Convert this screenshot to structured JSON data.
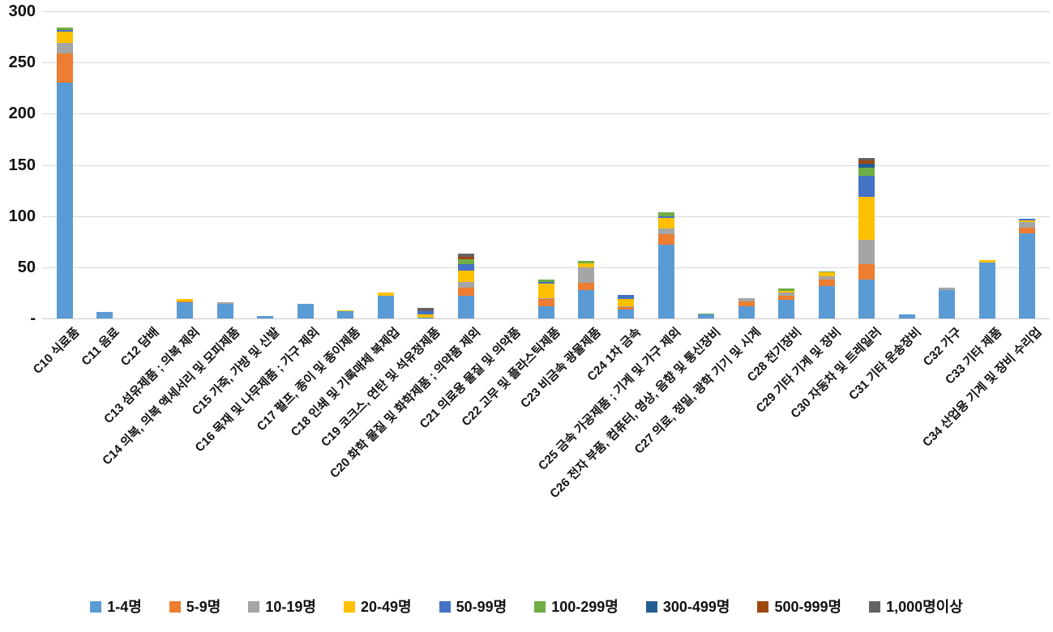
{
  "chart_data": {
    "type": "bar",
    "stacked": true,
    "title": "",
    "grid": true,
    "legend_position": "bottom",
    "y_axis": {
      "min": 0,
      "max": 300,
      "tick_interval": 50,
      "tick_values": [
        0,
        50,
        100,
        150,
        200,
        250,
        300
      ],
      "tick_labels": [
        "-",
        "50",
        "100",
        "150",
        "200",
        "250",
        "300"
      ]
    },
    "categories": [
      "C10 식료품",
      "C11 음료",
      "C12 담배",
      "C13 섬유제품 ; 의복 제외",
      "C14 의복, 의복 액세서리 및 모피제품",
      "C15 가죽, 가방 및 신발",
      "C16 목재 및 나무제품 ; 가구 제외",
      "C17 펄프, 종이 및 종이제품",
      "C18 인쇄 및 기록매체 복제업",
      "C19 코크스, 연탄 및 석유정제품",
      "C20 화학 물질 및 화학제품 ; 의약품 제외",
      "C21 의료용 물질 및 의약품",
      "C22 고무 및 플라스틱제품",
      "C23 비금속 광물제품",
      "C24 1차 금속",
      "C25 금속 가공제품 ; 기계 및 가구 제외",
      "C26 전자 부품, 컴퓨터, 영상, 음향 및 통신장비",
      "C27 의료, 정밀, 광학 기기 및 시계",
      "C28 전기장비",
      "C29 기타 기계 및 장비",
      "C30 자동차 및 트레일러",
      "C31 기타 운송장비",
      "C32 가구",
      "C33 기타 제품",
      "C34 산업용 기계 및 장비 수리업"
    ],
    "series": [
      {
        "name": "1-4명",
        "color": "#5B9BD5",
        "values": [
          230,
          6,
          0,
          16,
          14,
          2,
          14,
          7,
          22,
          1,
          22,
          0,
          12,
          28,
          9,
          72,
          4,
          12,
          18,
          32,
          38,
          4,
          28,
          55,
          83
        ]
      },
      {
        "name": "5-9명",
        "color": "#ED7D31",
        "values": [
          29,
          0,
          0,
          1,
          0,
          0,
          0,
          0,
          0,
          0,
          8,
          0,
          7,
          7,
          2,
          10,
          0,
          5,
          4,
          6,
          15,
          0,
          0,
          0,
          6
        ]
      },
      {
        "name": "10-19명",
        "color": "#A5A5A5",
        "values": [
          10,
          0,
          0,
          0,
          2,
          0,
          0,
          0,
          0,
          0,
          6,
          0,
          1,
          15,
          1,
          6,
          0,
          3,
          3,
          3,
          24,
          0,
          2,
          0,
          5
        ]
      },
      {
        "name": "20-49명",
        "color": "#FFC000",
        "values": [
          11,
          0,
          0,
          2,
          0,
          0,
          0,
          1,
          3,
          3,
          11,
          0,
          14,
          4,
          7,
          10,
          0,
          0,
          2,
          4,
          42,
          0,
          0,
          2,
          2
        ]
      },
      {
        "name": "50-99명",
        "color": "#4472C4",
        "values": [
          2,
          0,
          0,
          0,
          0,
          0,
          0,
          0,
          0,
          3,
          6,
          0,
          2,
          0,
          4,
          2,
          0,
          0,
          0,
          0,
          20,
          0,
          0,
          0,
          1
        ]
      },
      {
        "name": "100-299명",
        "color": "#70AD47",
        "values": [
          2,
          0,
          0,
          0,
          0,
          0,
          0,
          0,
          0,
          0,
          5,
          0,
          2,
          2,
          0,
          4,
          1,
          0,
          2,
          1,
          8,
          0,
          0,
          0,
          0
        ]
      },
      {
        "name": "300-499명",
        "color": "#255E91",
        "values": [
          0,
          0,
          0,
          0,
          0,
          0,
          0,
          0,
          0,
          0,
          0,
          0,
          0,
          0,
          0,
          0,
          0,
          0,
          0,
          0,
          4,
          0,
          0,
          0,
          0
        ]
      },
      {
        "name": "500-999명",
        "color": "#9E480E",
        "values": [
          0,
          0,
          0,
          0,
          0,
          0,
          0,
          0,
          0,
          0,
          2,
          0,
          0,
          0,
          0,
          0,
          0,
          0,
          0,
          0,
          3,
          0,
          0,
          0,
          0
        ]
      },
      {
        "name": "1,000명이상",
        "color": "#636363",
        "values": [
          0,
          0,
          0,
          0,
          0,
          0,
          0,
          0,
          0,
          3,
          3,
          0,
          0,
          0,
          0,
          0,
          0,
          0,
          0,
          0,
          3,
          0,
          0,
          0,
          0
        ]
      }
    ]
  }
}
